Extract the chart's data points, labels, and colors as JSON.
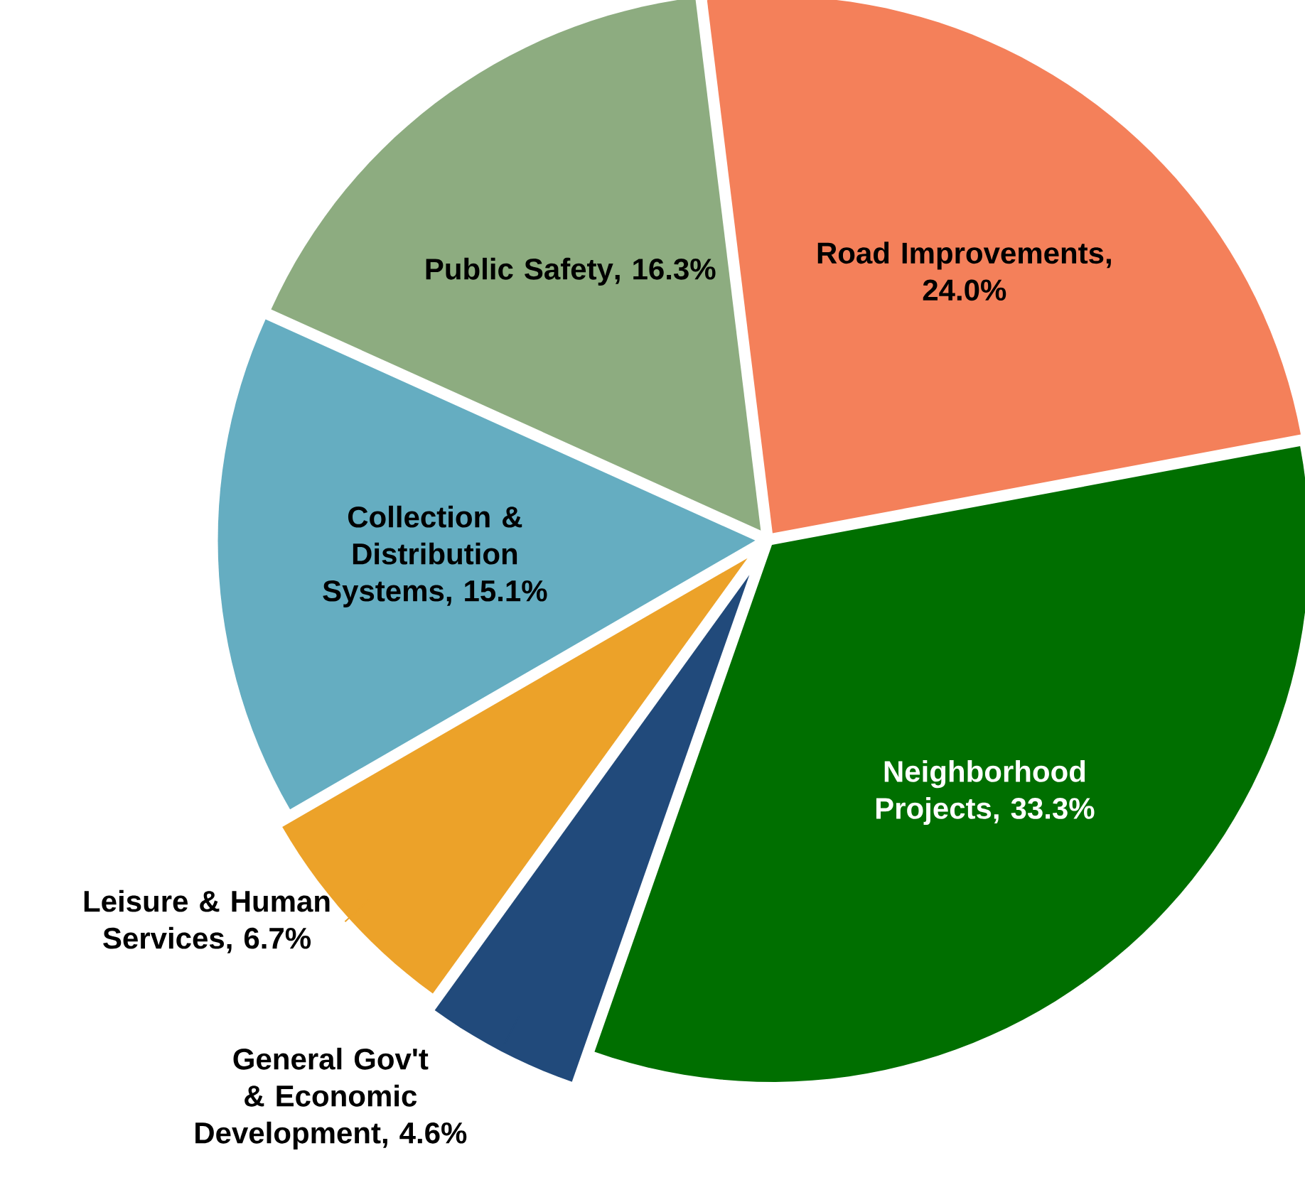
{
  "chart_data": {
    "type": "pie",
    "categories": [
      "Road Improvements",
      "Neighborhood Projects",
      "General Gov't & Economic Development",
      "Leisure & Human Services",
      "Collection & Distribution Systems",
      "Public Safety"
    ],
    "values": [
      24.0,
      33.3,
      4.6,
      6.7,
      15.1,
      16.3
    ],
    "value_labels": [
      ", 24.0%",
      ", 33.3%",
      ", 4.6%",
      ", 6.7%",
      ", 15.1%",
      ", 16.3%"
    ],
    "colors": [
      "#f4805a",
      "#006f00",
      "#214a7b",
      "#eca229",
      "#65adc1",
      "#8dac80"
    ]
  }
}
